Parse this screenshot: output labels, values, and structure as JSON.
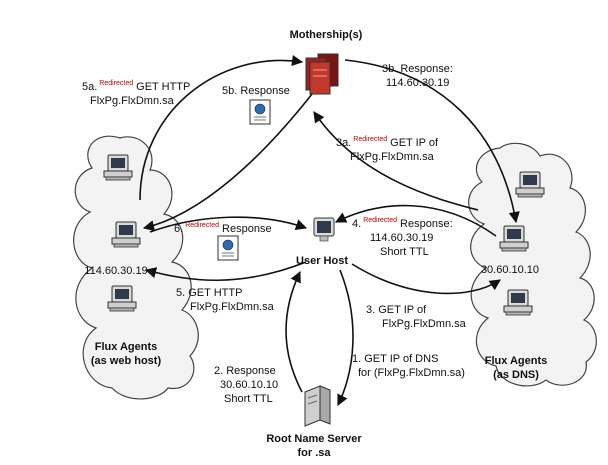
{
  "nodes": {
    "mothership": "Mothership(s)",
    "user_host": "User Host",
    "root_server": [
      "Root Name Server",
      "for .sa"
    ],
    "web_agents": [
      "Flux Agents",
      "(as web host)"
    ],
    "dns_agents": [
      "Flux Agents",
      "(as DNS)"
    ],
    "web_agent_ip": "114.60.30.19",
    "dns_agent_ip": "30.60.10.10"
  },
  "steps": {
    "s1": [
      "1. GET IP of DNS",
      "for (FlxPg.FlxDmn.sa)"
    ],
    "s2": [
      "2. Response",
      "30.60.10.10",
      "Short TTL"
    ],
    "s3": [
      "3. GET IP of",
      "FlxPg.FlxDmn.sa"
    ],
    "s3a": {
      "prefix": "3a.",
      "tag": "Redirected",
      "text": "GET IP of",
      "line2": "FlxPg.FlxDmn.sa"
    },
    "s3b": [
      "3b. Response:",
      "114.60.30.19"
    ],
    "s4": {
      "prefix": "4.",
      "tag": "Redirected",
      "text": "Response:",
      "line2": "114.60.30.19",
      "line3": "Short TTL"
    },
    "s5": [
      "5. GET HTTP",
      "FlxPg.FlxDmn.sa"
    ],
    "s5a": {
      "prefix": "5a.",
      "tag": "Redirected",
      "text": "GET HTTP",
      "line2": "FlxPg.FlxDmn.sa"
    },
    "s5b": "5b. Response",
    "s6": {
      "prefix": "6.",
      "tag": "Redirected",
      "text": "Response"
    }
  },
  "colors": {
    "redirected_tag": "#c00000",
    "arrow": "#111111",
    "cloud_fill": "#f2f2f2",
    "cloud_stroke": "#444444",
    "server": "#c0392b"
  }
}
